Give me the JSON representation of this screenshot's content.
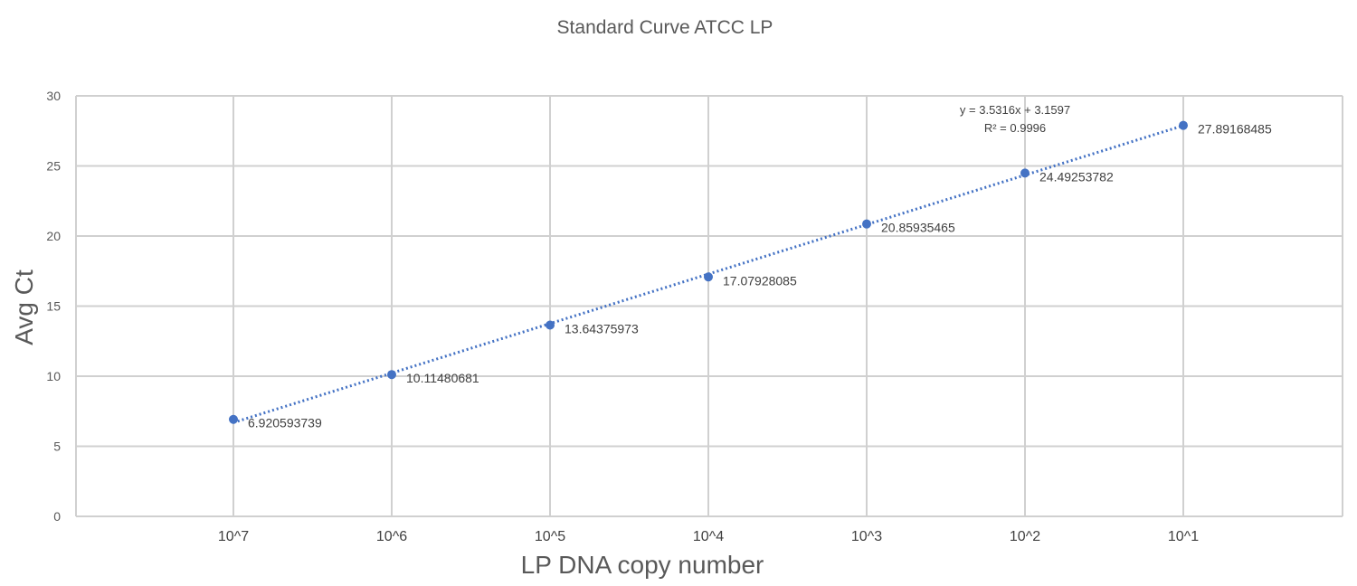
{
  "chart_data": {
    "type": "scatter",
    "title": "Standard Curve ATCC LP",
    "xlabel": "LP DNA copy number",
    "ylabel": "Avg Ct",
    "categories": [
      "10^7",
      "10^6",
      "10^5",
      "10^4",
      "10^3",
      "10^2",
      "10^1"
    ],
    "values": [
      6.920593739,
      10.11480681,
      13.64375973,
      17.07928085,
      20.85935465,
      24.49253782,
      27.89168485
    ],
    "data_labels": [
      "6.920593739",
      "10.11480681",
      "13.64375973",
      "17.07928085",
      "20.85935465",
      "24.49253782",
      "27.89168485"
    ],
    "ylim": [
      0,
      30
    ],
    "yticks": [
      "0",
      "5",
      "10",
      "15",
      "20",
      "25",
      "30"
    ],
    "grid": true,
    "trendline": {
      "type": "linear",
      "style": "dotted",
      "slope": 3.5316,
      "intercept": 3.1597,
      "equation": "y = 3.5316x + 3.1597",
      "r_squared": "R² = 0.9996"
    },
    "colors": {
      "series": "#4472c4",
      "grid": "#d0d0d0",
      "text": "#595959"
    }
  }
}
